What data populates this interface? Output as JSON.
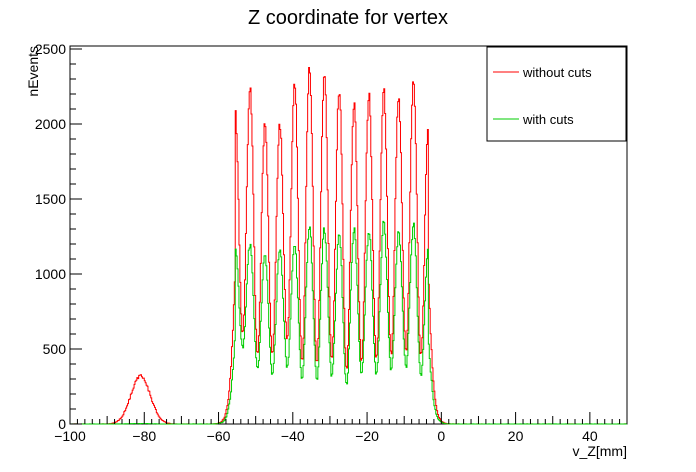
{
  "chart_data": {
    "type": "line",
    "title": "Z coordinate for vertex",
    "xlabel": "v_Z[mm]",
    "ylabel": "nEvents",
    "xlim": [
      -100,
      50
    ],
    "ylim": [
      0,
      2520
    ],
    "x_ticks": [
      -100,
      -80,
      -60,
      -40,
      -20,
      0,
      20,
      40
    ],
    "y_ticks": [
      0,
      500,
      1000,
      1500,
      2000,
      2500
    ],
    "legend_position": "top-right",
    "grid": false,
    "series": [
      {
        "name": "without cuts",
        "color": "#ff0000",
        "peak_x": [
          -81,
          -55.5,
          -51.5,
          -47.5,
          -43.5,
          -39.5,
          -35.5,
          -31.5,
          -27.5,
          -23.5,
          -19.5,
          -15.5,
          -11.5,
          -7.5,
          -3.5
        ],
        "peak_y": [
          320,
          2080,
          2230,
          2010,
          2000,
          2270,
          2380,
          2350,
          2230,
          2140,
          2200,
          2230,
          2170,
          2290,
          2000
        ],
        "valley_x": [
          -53.5,
          -49.5,
          -45.5,
          -41.5,
          -37.5,
          -33.5,
          -29.5,
          -25.5,
          -21.5,
          -17.5,
          -13.5,
          -9.5,
          -5.5
        ],
        "valley_y": [
          600,
          470,
          470,
          570,
          420,
          400,
          430,
          360,
          420,
          430,
          460,
          480,
          450
        ]
      },
      {
        "name": "with cuts",
        "color": "#00cc00",
        "peak_x": [
          -81,
          -55.5,
          -51.5,
          -47.5,
          -43.5,
          -39.5,
          -35.5,
          -31.5,
          -27.5,
          -23.5,
          -19.5,
          -15.5,
          -11.5,
          -7.5,
          -3.5
        ],
        "peak_y": [
          3,
          1180,
          1200,
          1130,
          1170,
          1190,
          1320,
          1300,
          1260,
          1300,
          1290,
          1340,
          1280,
          1330,
          1160
        ],
        "valley_x": [
          -53.5,
          -49.5,
          -45.5,
          -41.5,
          -37.5,
          -33.5,
          -29.5,
          -25.5,
          -21.5,
          -17.5,
          -13.5,
          -9.5,
          -5.5
        ],
        "valley_y": [
          510,
          370,
          330,
          380,
          300,
          290,
          320,
          260,
          330,
          330,
          360,
          380,
          320
        ]
      }
    ]
  }
}
